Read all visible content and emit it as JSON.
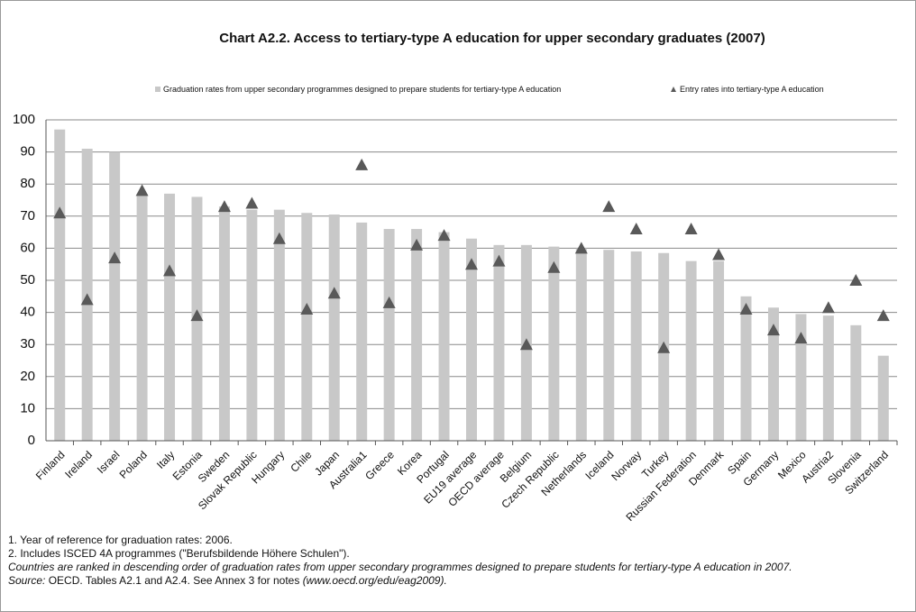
{
  "chart_data": {
    "type": "bar",
    "title": "Chart A2.2.  Access to tertiary-type A education for upper secondary graduates (2007)",
    "categories": [
      "Finland",
      "Ireland",
      "Israel",
      "Poland",
      "Italy",
      "Estonia",
      "Sweden",
      "Slovak Republic",
      "Hungary",
      "Chile",
      "Japan",
      "Australia1",
      "Greece",
      "Korea",
      "Portugal",
      "EU19 average",
      "OECD average",
      "Belgium",
      "Czech Republic",
      "Netherlands",
      "Iceland",
      "Norway",
      "Turkey",
      "Russian Federation",
      "Denmark",
      "Spain",
      "Germany",
      "Mexico",
      "Austria2",
      "Slovenia",
      "Switzerland"
    ],
    "series": [
      {
        "name": "Graduation rates from upper secondary programmes designed to prepare  students for tertiary-type A education",
        "color": "#c8c8c8",
        "marker": "bar",
        "values": [
          97,
          91,
          90,
          77,
          77,
          76,
          73,
          72,
          72,
          71,
          70.5,
          68,
          66,
          66,
          65,
          63,
          61,
          61,
          60.5,
          60,
          59.5,
          59,
          58.5,
          56,
          56,
          45,
          41.5,
          39.5,
          39,
          36,
          26.5
        ]
      },
      {
        "name": "Entry rates into tertiary-type A education",
        "color": "#595959",
        "marker": "triangle",
        "values": [
          71,
          44,
          57,
          78,
          53,
          39,
          73,
          74,
          63,
          41,
          46,
          86,
          43,
          61,
          64,
          55,
          56,
          30,
          54,
          60,
          73,
          66,
          29,
          66,
          58,
          41,
          34.5,
          32,
          41.5,
          50,
          39
        ]
      }
    ],
    "ylim": [
      0,
      100
    ],
    "yticks": [
      0,
      10,
      20,
      30,
      40,
      50,
      60,
      70,
      80,
      90,
      100
    ],
    "grid": true,
    "legend": "top",
    "notes": [
      "1. Year of reference for graduation rates: 2006.",
      "2. Includes ISCED 4A programmes (\"Berufsbildende Höhere Schulen\").",
      "Countries are ranked in descending order of  graduation rates from upper secondary programmes  designed to prepare students  for tertiary-type A education in 2007."
    ],
    "source": {
      "label": "Source:",
      "text": "OECD. Tables A2.1 and A2.4. See Annex 3 for notes",
      "link": "(www.oecd.org/edu/eag2009)."
    }
  }
}
